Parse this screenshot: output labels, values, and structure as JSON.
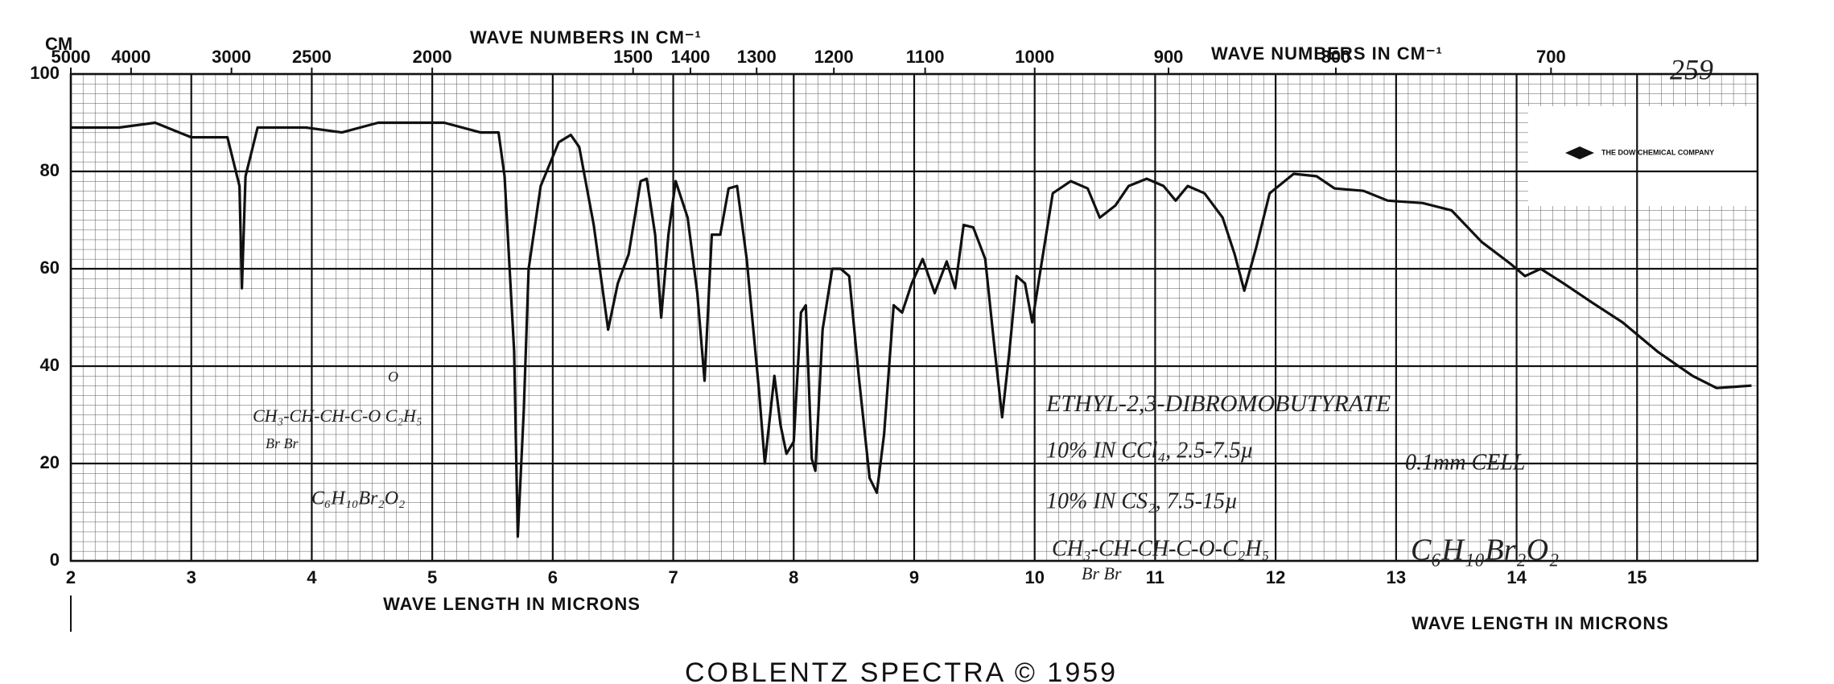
{
  "chart_data": {
    "type": "line",
    "x_label": "WAVE LENGTH IN MICRONS",
    "x2_label": "WAVE NUMBERS IN CM⁻¹",
    "x2_unit": "CM",
    "page_number": "259",
    "logo": "THE DOW CHEMICAL COMPANY",
    "footer": "COBLENTZ SPECTRA © 1959",
    "annotations": [
      "ETHYL-2,3-DIBROMOBUTYRATE",
      "10% IN CCl₄, 2.5-7.5µ",
      "0.1mm CELL",
      "10% IN CS₂, 7.5-15µ",
      "CH₃-CH-CH-C-O-C₂H₅",
      "Br  Br",
      "C₆H₁₀Br₂O₂",
      "CH₃-CH-CH-C-O C₂H₅",
      "Br   Br",
      "O",
      "C₆H₁₀Br₂O₂"
    ],
    "color": "#111111",
    "grid": true,
    "xlim": [
      2,
      16
    ],
    "ylim": [
      0,
      100
    ],
    "xticks": [
      2,
      3,
      4,
      5,
      6,
      7,
      8,
      9,
      10,
      11,
      12,
      13,
      14,
      15
    ],
    "yticks": [
      0,
      20,
      40,
      60,
      80,
      100
    ],
    "x2ticks": [
      5000,
      4000,
      3000,
      2500,
      2000,
      1500,
      1400,
      1300,
      1200,
      1100,
      1000,
      900,
      800,
      700
    ],
    "x": [
      2.0,
      2.4,
      2.7,
      2.9,
      3.0,
      3.3,
      3.4,
      3.42,
      3.45,
      3.55,
      3.95,
      4.25,
      4.55,
      5.1,
      5.4,
      5.55,
      5.6,
      5.68,
      5.71,
      5.76,
      5.8,
      5.9,
      6.05,
      6.15,
      6.22,
      6.34,
      6.46,
      6.54,
      6.63,
      6.73,
      6.78,
      6.85,
      6.9,
      6.96,
      7.02,
      7.12,
      7.2,
      7.26,
      7.32,
      7.39,
      7.46,
      7.53,
      7.61,
      7.71,
      7.76,
      7.84,
      7.89,
      7.94,
      8.0,
      8.06,
      8.1,
      8.15,
      8.18,
      8.24,
      8.32,
      8.39,
      8.46,
      8.54,
      8.63,
      8.69,
      8.75,
      8.83,
      8.9,
      8.98,
      9.07,
      9.17,
      9.27,
      9.34,
      9.41,
      9.49,
      9.59,
      9.67,
      9.73,
      9.79,
      9.85,
      9.92,
      9.98,
      10.05,
      10.15,
      10.3,
      10.44,
      10.54,
      10.67,
      10.78,
      10.93,
      11.07,
      11.17,
      11.27,
      11.41,
      11.56,
      11.66,
      11.74,
      11.84,
      11.95,
      12.15,
      12.34,
      12.49,
      12.73,
      12.93,
      13.22,
      13.46,
      13.71,
      13.95,
      14.07,
      14.2,
      14.39,
      14.63,
      14.88,
      15.17,
      15.46,
      15.66,
      15.95
    ],
    "values": [
      89,
      89,
      90,
      88,
      87,
      87,
      77,
      56,
      79,
      89,
      89,
      88,
      90,
      90,
      88,
      88,
      79,
      43,
      5,
      31,
      60,
      77,
      86,
      87.5,
      85,
      69,
      47.5,
      57,
      63,
      78,
      78.5,
      67,
      50,
      67,
      78,
      70.5,
      55,
      37,
      67,
      67,
      76.5,
      77,
      62,
      35.5,
      20,
      38,
      28,
      22,
      24.5,
      51,
      52.5,
      21,
      18.5,
      47.5,
      60,
      60,
      58.5,
      38,
      17,
      14,
      26,
      52.5,
      51,
      57,
      62,
      55,
      61.5,
      56,
      69,
      68.5,
      62,
      43,
      29.5,
      43,
      58.5,
      57,
      49,
      60,
      75.5,
      78,
      76.5,
      70.5,
      73,
      77,
      78.5,
      77,
      74,
      77,
      75.5,
      70.5,
      63,
      55.5,
      64.5,
      75.5,
      79.5,
      79,
      76.5,
      76,
      74,
      73.5,
      72,
      65.5,
      61,
      58.5,
      60,
      57,
      53,
      49,
      43,
      38,
      35.5,
      36
    ]
  }
}
